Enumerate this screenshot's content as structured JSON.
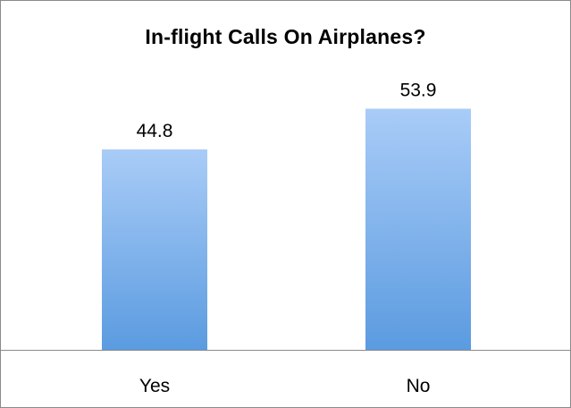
{
  "chart_data": {
    "type": "bar",
    "title": "In-flight Calls On Airplanes?",
    "categories": [
      "Yes",
      "No"
    ],
    "values": [
      44.8,
      53.9
    ],
    "data_labels": [
      "44.8",
      "53.9"
    ],
    "xlabel": "",
    "ylabel": "",
    "ylim": [
      0,
      60
    ],
    "grid": false,
    "legend": "none",
    "colors": {
      "bar_top": "#a9ccf7",
      "bar_bottom": "#5b9be0",
      "axis": "#8c8c8c"
    }
  }
}
